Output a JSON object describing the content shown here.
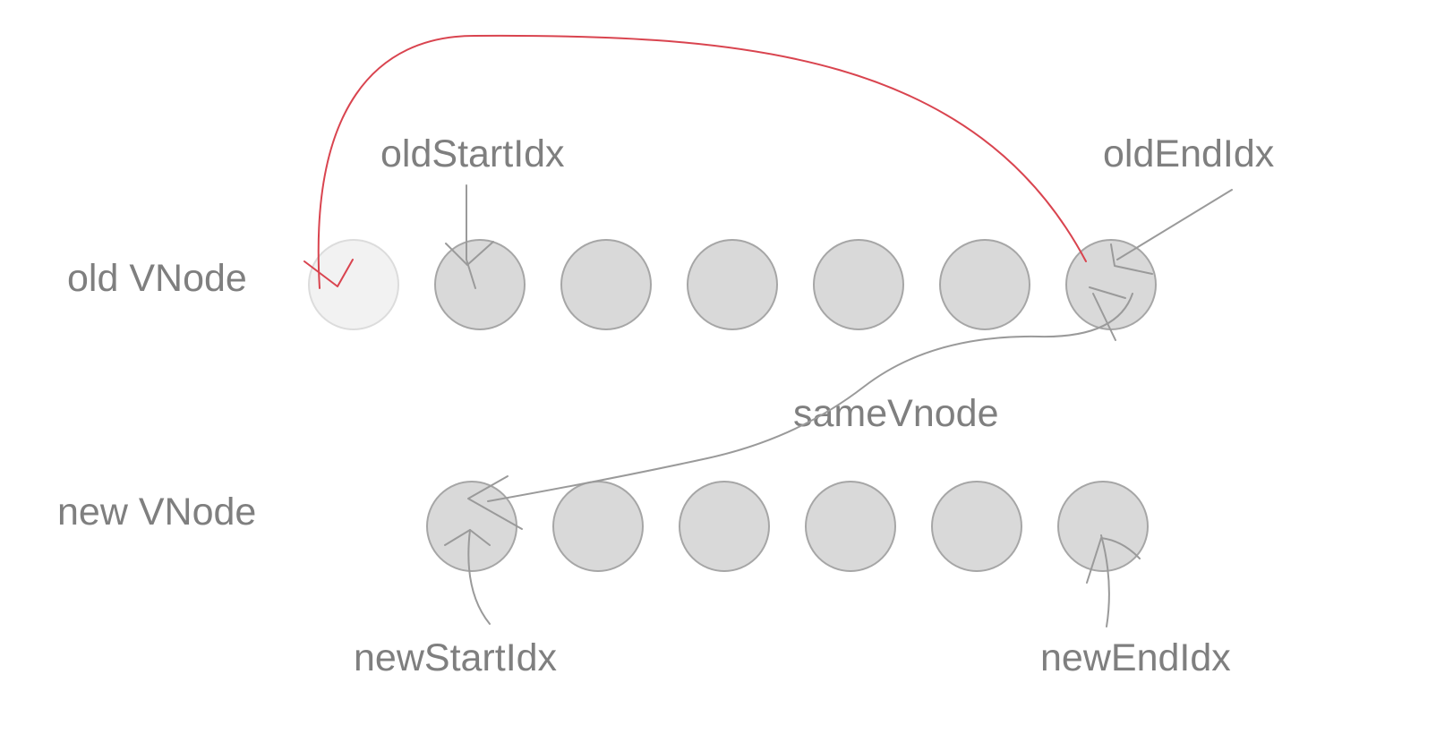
{
  "rows": {
    "old": {
      "label": "old VNode",
      "node_count": 7,
      "moved_index": 0
    },
    "new": {
      "label": "new VNode",
      "node_count": 6
    }
  },
  "pointers": {
    "old_start": "oldStartIdx",
    "old_end": "oldEndIdx",
    "new_start": "newStartIdx",
    "new_end": "newEndIdx"
  },
  "comparison": {
    "label": "sameVnode"
  },
  "colors": {
    "text": "#7f7f7f",
    "node_fill": "#d9d9d9",
    "node_stroke": "#a6a6a6",
    "moved_node_fill": "#f2f2f2",
    "moved_node_stroke": "#dcdcdc",
    "pointer_stroke": "#9a9a9a",
    "move_arrow": "#d9444f"
  }
}
